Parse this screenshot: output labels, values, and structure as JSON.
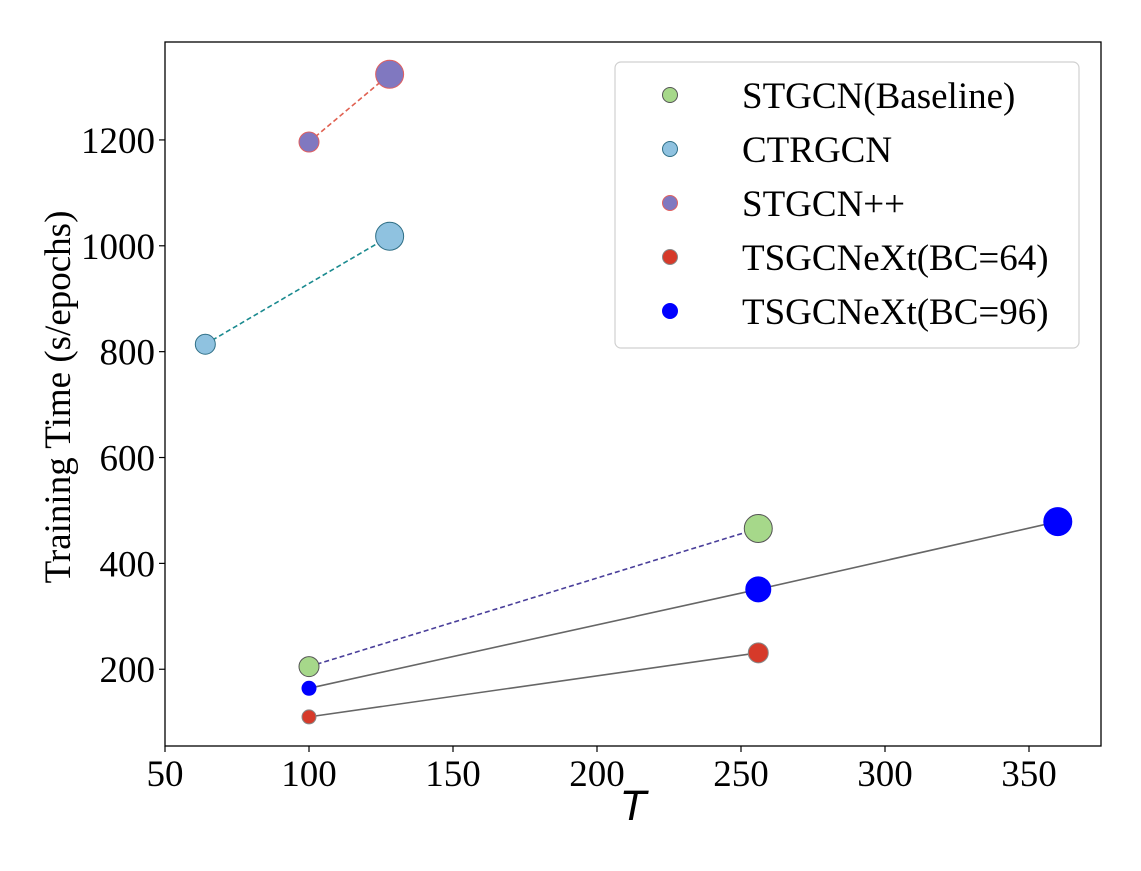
{
  "chart_data": {
    "type": "scatter",
    "title": "",
    "xlabel": "T",
    "ylabel": "Training Time (s/epochs)",
    "xlim": [
      50,
      375
    ],
    "ylim": [
      55,
      1385
    ],
    "xticks": [
      50,
      100,
      150,
      200,
      250,
      300,
      350
    ],
    "yticks": [
      200,
      400,
      600,
      800,
      1000,
      1200
    ],
    "legend_position": "top-right",
    "series": [
      {
        "name": "STGCN(Baseline)",
        "color": "#a6d88a",
        "edge": "#555555",
        "line": "dashed",
        "line_color": "#4a3f9a",
        "points": [
          {
            "x": 100,
            "y": 205,
            "size": "small"
          },
          {
            "x": 256,
            "y": 466,
            "size": "large"
          }
        ]
      },
      {
        "name": "CTRGCN",
        "color": "#8fc2e0",
        "edge": "#2f6f86",
        "line": "dashed",
        "line_color": "#1a8a8f",
        "points": [
          {
            "x": 64,
            "y": 814,
            "size": "small"
          },
          {
            "x": 128,
            "y": 1018,
            "size": "large"
          }
        ]
      },
      {
        "name": "STGCN++",
        "color": "#8078c0",
        "edge": "#e06060",
        "line": "dashed",
        "line_color": "#e06050",
        "points": [
          {
            "x": 100,
            "y": 1196,
            "size": "small"
          },
          {
            "x": 128,
            "y": 1324,
            "size": "large"
          }
        ]
      },
      {
        "name": "TSGCNeXt(BC=64)",
        "color": "#d63a2a",
        "edge": "#888888",
        "line": "solid",
        "line_color": "#666666",
        "points": [
          {
            "x": 100,
            "y": 110,
            "size": "tiny"
          },
          {
            "x": 256,
            "y": 231,
            "size": "small"
          }
        ]
      },
      {
        "name": "TSGCNeXt(BC=96)",
        "color": "#0000ff",
        "edge": "#0000ff",
        "line": "solid",
        "line_color": "#666666",
        "points": [
          {
            "x": 100,
            "y": 164,
            "size": "tiny"
          },
          {
            "x": 256,
            "y": 351,
            "size": "medium"
          },
          {
            "x": 360,
            "y": 479,
            "size": "large"
          }
        ]
      }
    ]
  }
}
